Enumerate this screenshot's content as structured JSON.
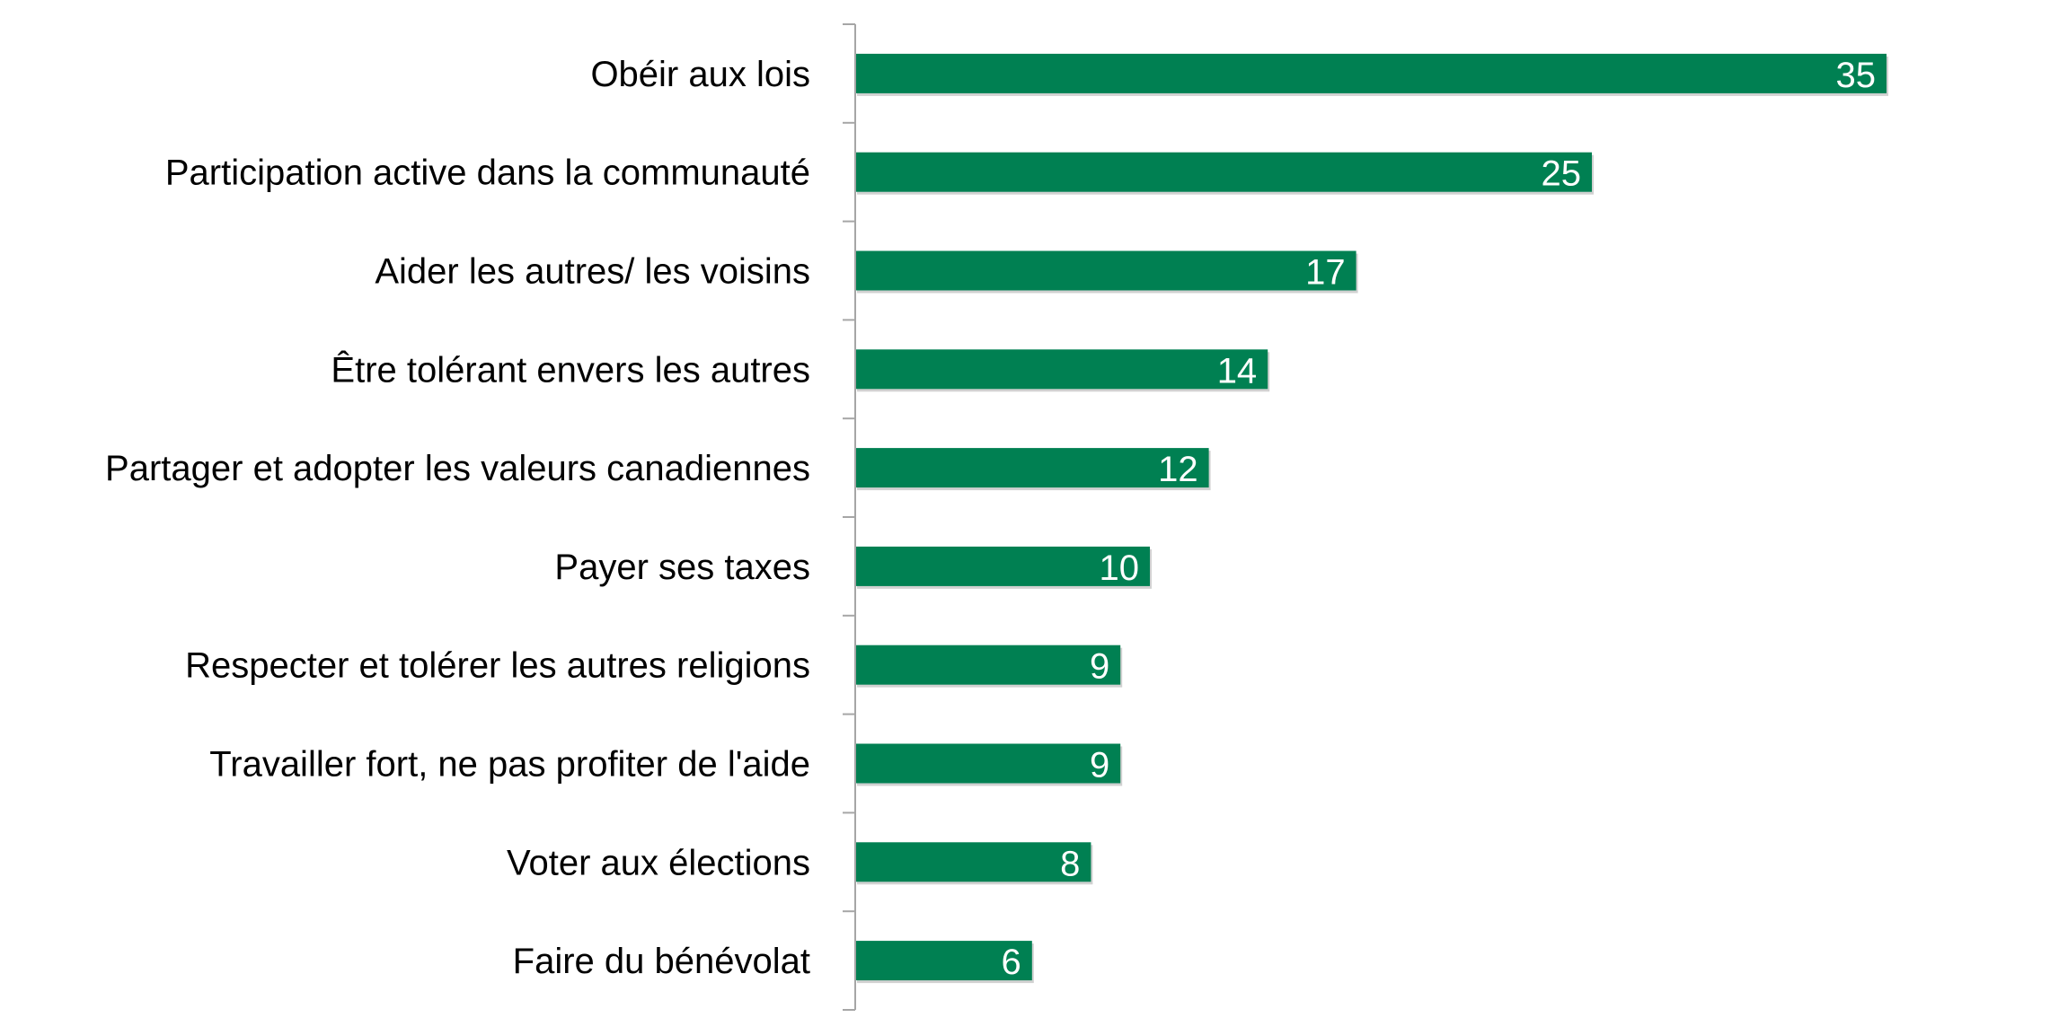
{
  "chart_data": {
    "type": "bar",
    "orientation": "horizontal",
    "title": "",
    "xlabel": "",
    "ylabel": "",
    "categories": [
      "Obéir aux lois",
      "Participation active dans la communauté",
      "Aider les autres/ les voisins",
      "Être tolérant envers les autres",
      "Partager et adopter les valeurs canadiennes",
      "Payer ses taxes",
      "Respecter et tolérer les autres religions",
      "Travailler fort, ne pas profiter de l'aide",
      "Voter aux élections",
      "Faire du bénévolat"
    ],
    "values": [
      35,
      25,
      17,
      14,
      12,
      10,
      9,
      9,
      8,
      6
    ],
    "data_labels": [
      "35",
      "25",
      "17",
      "14",
      "12",
      "10",
      "9",
      "9",
      "8",
      "6"
    ],
    "xlim": [
      0,
      35
    ],
    "grid": false,
    "legend": "none",
    "bar_color": "#008052",
    "label_color": "#ffffff",
    "axis_color": "#a6a6a6"
  }
}
